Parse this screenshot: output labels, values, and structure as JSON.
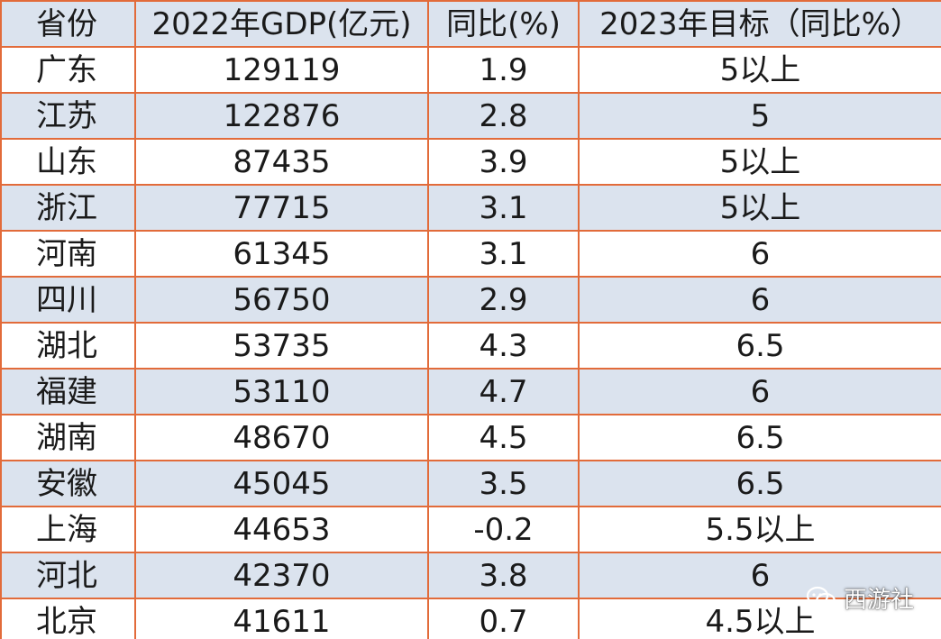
{
  "table": {
    "headers": [
      "省份",
      "2022年GDP(亿元)",
      "同比(%)",
      "2023年目标（同比%）"
    ],
    "rows": [
      [
        "广东",
        "129119",
        "1.9",
        "5以上"
      ],
      [
        "江苏",
        "122876",
        "2.8",
        "5"
      ],
      [
        "山东",
        "87435",
        "3.9",
        "5以上"
      ],
      [
        "浙江",
        "77715",
        "3.1",
        "5以上"
      ],
      [
        "河南",
        "61345",
        "3.1",
        "6"
      ],
      [
        "四川",
        "56750",
        "2.9",
        "6"
      ],
      [
        "湖北",
        "53735",
        "4.3",
        "6.5"
      ],
      [
        "福建",
        "53110",
        "4.7",
        "6"
      ],
      [
        "湖南",
        "48670",
        "4.5",
        "6.5"
      ],
      [
        "安徽",
        "45045",
        "3.5",
        "6.5"
      ],
      [
        "上海",
        "44653",
        "-0.2",
        "5.5以上"
      ],
      [
        "河北",
        "42370",
        "3.8",
        "6"
      ],
      [
        "北京",
        "41611",
        "0.7",
        "4.5以上"
      ]
    ]
  },
  "watermark": {
    "text": "西游社",
    "icon": "wechat-icon"
  },
  "colors": {
    "border": "#e26b3a",
    "band": "#dbe3ee"
  }
}
